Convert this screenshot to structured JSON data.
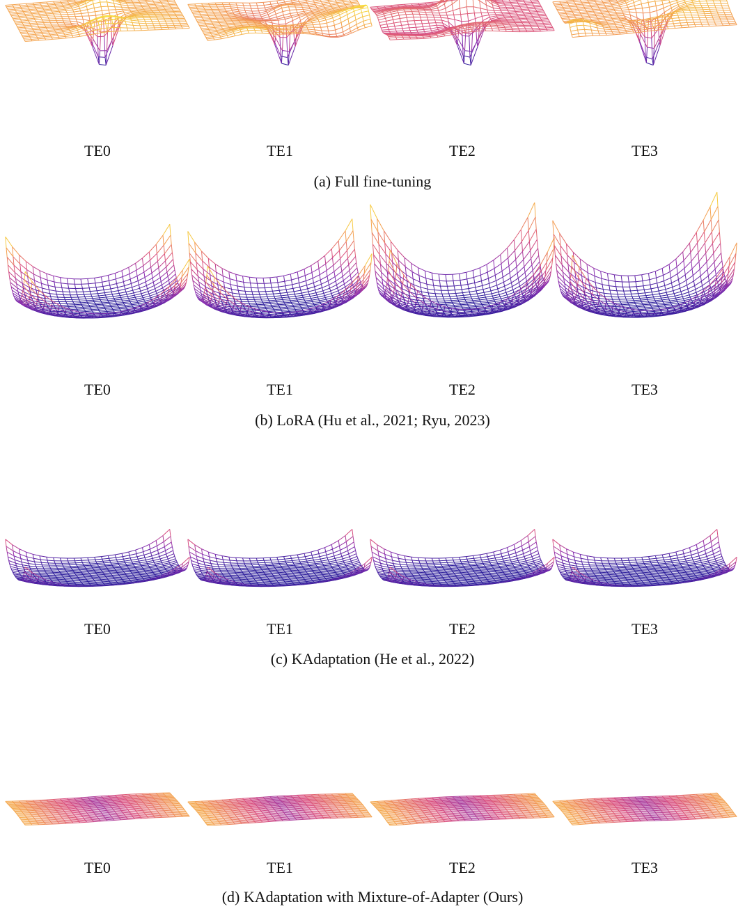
{
  "figure": {
    "surface_colormap": {
      "low": "#2a1b9a",
      "mid": "#8b2fb0",
      "mid2": "#d94f7f",
      "high_orange": "#f39a52",
      "high_yellow": "#f7e03c"
    },
    "rows": [
      {
        "id": "a",
        "caption": "(a) Full fine-tuning",
        "surface_kind": "rugged",
        "panels": [
          {
            "label": "TE0"
          },
          {
            "label": "TE1"
          },
          {
            "label": "TE2"
          },
          {
            "label": "TE3"
          }
        ]
      },
      {
        "id": "b",
        "caption": "(b) LoRA (Hu et al., 2021; Ryu, 2023)",
        "surface_kind": "bowl",
        "panels": [
          {
            "label": "TE0"
          },
          {
            "label": "TE1"
          },
          {
            "label": "TE2"
          },
          {
            "label": "TE3"
          }
        ]
      },
      {
        "id": "c",
        "caption": "(c) KAdaptation (He et al., 2022)",
        "surface_kind": "shallow",
        "panels": [
          {
            "label": "TE0"
          },
          {
            "label": "TE1"
          },
          {
            "label": "TE2"
          },
          {
            "label": "TE3"
          }
        ]
      },
      {
        "id": "d",
        "caption": "(d) KAdaptation with Mixture-of-Adapter (Ours)",
        "surface_kind": "flat",
        "panels": [
          {
            "label": "TE0"
          },
          {
            "label": "TE1"
          },
          {
            "label": "TE2"
          },
          {
            "label": "TE3"
          }
        ]
      }
    ]
  }
}
